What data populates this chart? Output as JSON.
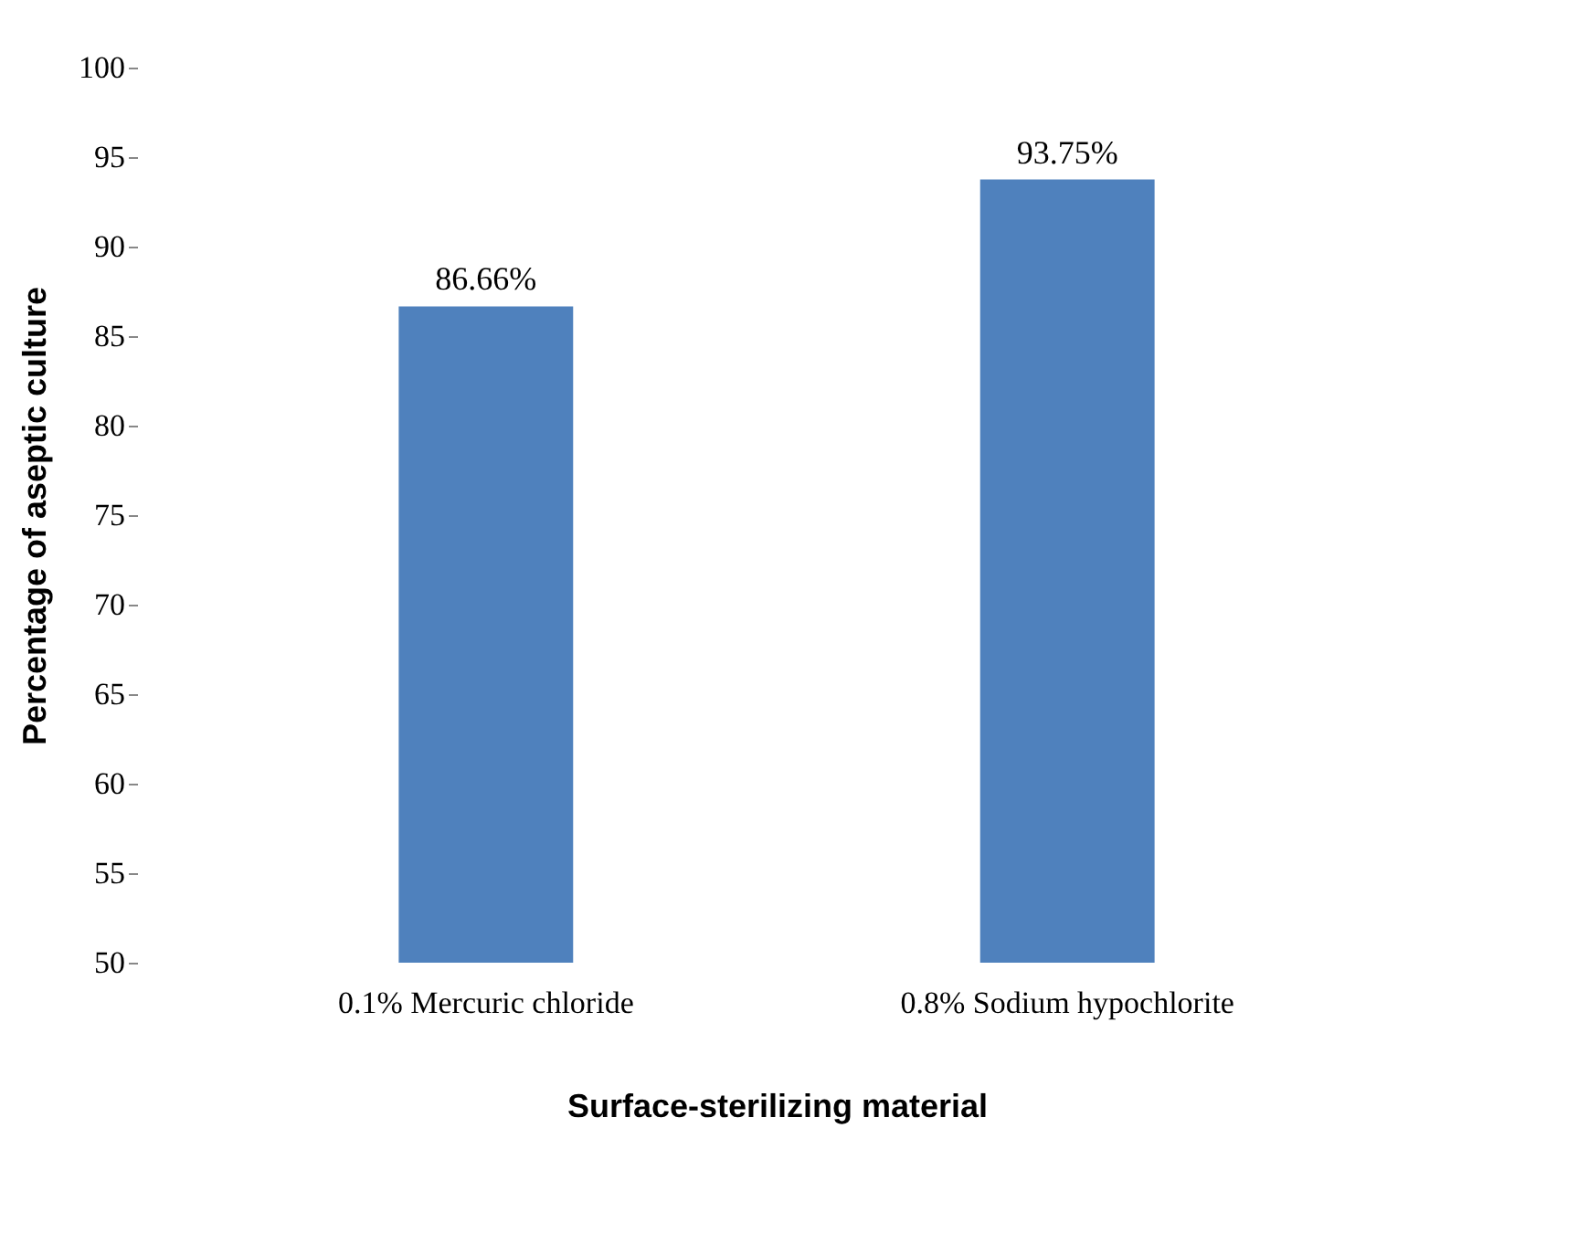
{
  "chart_data": {
    "type": "bar",
    "xlabel": "Surface-sterilizing material",
    "ylabel": "Percentage of aseptic culture",
    "categories": [
      "0.1% Mercuric chloride",
      "0.8% Sodium hypochlorite"
    ],
    "values": [
      86.66,
      93.75
    ],
    "color": "#4f81bd",
    "value_labels": [
      "86.66%",
      "93.75%"
    ],
    "ylim": [
      50,
      100
    ],
    "yticks": [
      50,
      55,
      60,
      65,
      70,
      75,
      80,
      85,
      90,
      95,
      100
    ],
    "grid": false
  }
}
